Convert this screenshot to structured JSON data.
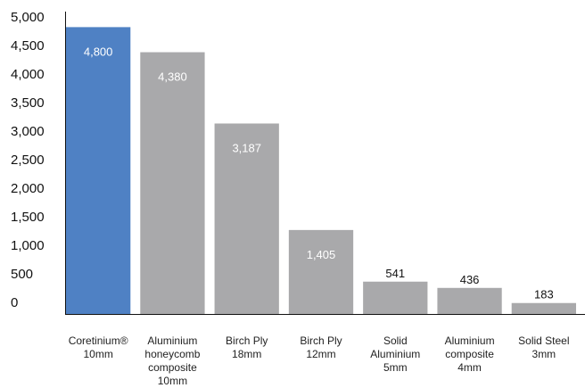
{
  "chart_data": {
    "type": "bar",
    "title": "",
    "xlabel": "",
    "ylabel": "",
    "ylim": [
      0,
      5000
    ],
    "yticks": [
      "5,000",
      "4,500",
      "4,000",
      "3,500",
      "3,000",
      "2,500",
      "2,000",
      "1,500",
      "1,000",
      "500",
      "0"
    ],
    "grid": false,
    "legend": "none",
    "categories": [
      [
        "Coretinium®",
        "10mm"
      ],
      [
        "Aluminium",
        "honeycomb",
        "composite",
        "10mm"
      ],
      [
        "Birch Ply",
        "18mm"
      ],
      [
        "Birch Ply",
        "12mm"
      ],
      [
        "Solid",
        "Aluminium",
        "5mm"
      ],
      [
        "Aluminium",
        "composite",
        "4mm"
      ],
      [
        "Solid Steel",
        "3mm"
      ]
    ],
    "values": [
      4800,
      4380,
      3187,
      1405,
      541,
      436,
      183
    ],
    "data_labels": [
      "4,800",
      "4,380",
      "3,187",
      "1,405",
      "541",
      "436",
      "183"
    ],
    "colors": {
      "highlight": "#4f81c4",
      "default": "#a9a9ab",
      "axis": "#111111",
      "label_inside": "#ffffff",
      "label_outside": "#111111"
    }
  }
}
